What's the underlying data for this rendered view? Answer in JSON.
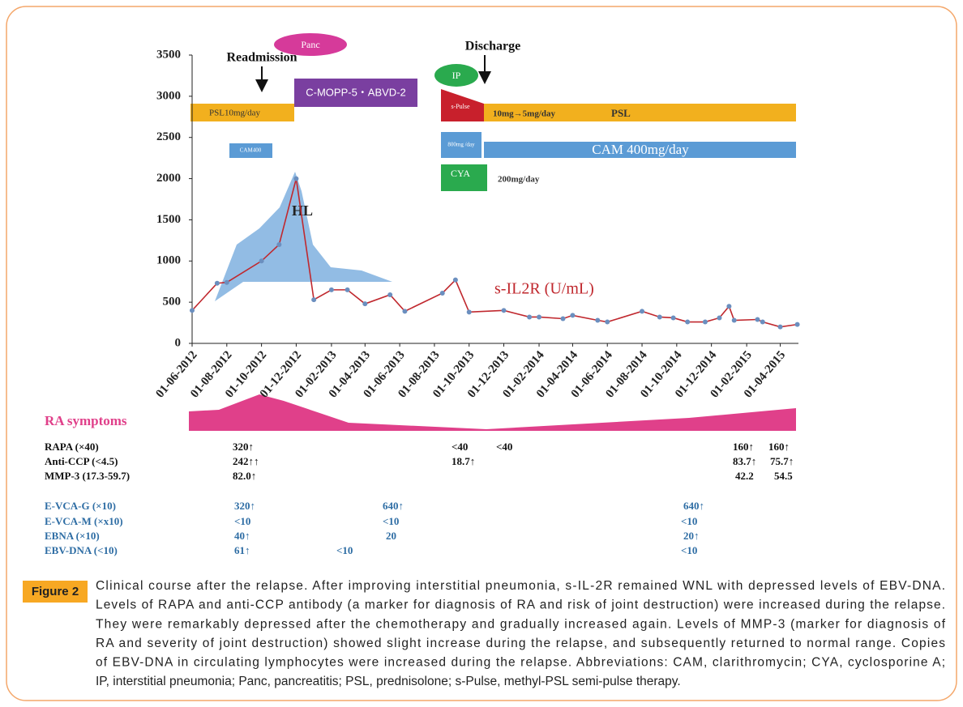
{
  "chart_data": {
    "type": "line",
    "x": [
      "01-06-2012",
      "15-07-2012",
      "01-08-2012",
      "01-10-2012",
      "01-11-2012",
      "01-12-2012",
      "01-01-2013",
      "01-02-2013",
      "01-03-2013",
      "01-04-2013",
      "15-05-2013",
      "10-06-2013",
      "15-08-2013",
      "07-09-2013",
      "01-10-2013",
      "01-12-2013",
      "15-01-2014",
      "01-02-2014",
      "15-03-2014",
      "01-04-2014",
      "15-05-2014",
      "01-06-2014",
      "01-08-2014",
      "01-09-2014",
      "25-09-2014",
      "20-10-2014",
      "20-11-2014",
      "15-12-2014",
      "01-01-2015",
      "10-01-2015",
      "20-02-2015",
      "01-03-2015",
      "01-04-2015",
      "01-05-2015"
    ],
    "series": [
      {
        "name": "s-IL2R (U/mL)",
        "color": "#c0282e",
        "values": [
          400,
          730,
          740,
          1000,
          1200,
          2000,
          530,
          650,
          650,
          480,
          590,
          390,
          610,
          770,
          380,
          400,
          320,
          320,
          300,
          340,
          280,
          260,
          390,
          320,
          310,
          260,
          260,
          310,
          450,
          280,
          290,
          260,
          200,
          230
        ]
      }
    ],
    "xlim": [
      "01-06-2012",
      "03-05-2015"
    ],
    "xticks": [
      "01-06-2012",
      "01-08-2012",
      "01-10-2012",
      "01-12-2012",
      "01-02-2013",
      "01-04-2013",
      "01-06-2013",
      "01-08-2013",
      "01-10-2013",
      "01-12-2013",
      "01-02-2014",
      "01-04-2014",
      "01-06-2014",
      "01-08-2014",
      "01-10-2014",
      "01-12-2014",
      "01-02-2015",
      "01-04-2015"
    ],
    "ylim": [
      0,
      3500
    ],
    "yticks": [
      0,
      500,
      1000,
      1500,
      2000,
      2500,
      3000,
      3500
    ],
    "marker_color": "#6b8fbf",
    "annotations": {
      "readmission": "Readmission",
      "discharge": "Discharge",
      "panc": "Panc",
      "chemo": "C-MOPP-5・ABVD-2",
      "psl_before": "PSL10mg/day",
      "cam_before": "CAM400",
      "hl": "HL",
      "ip": "IP",
      "spulse": "s-Pulse",
      "psl_dose": "10mg→5mg/day",
      "psl": "PSL",
      "cam_pulse": "800mg /day",
      "cam": "CAM 400mg/day",
      "cya": "CYA",
      "cya_dose": "200mg/day",
      "ra_symptoms": "RA symptoms"
    }
  },
  "lab_table": {
    "rows": [
      {
        "label": "RAPA (×40)",
        "values": [
          "320↑",
          "<40",
          "<40",
          "160↑",
          "160↑"
        ]
      },
      {
        "label": "Anti-CCP (<4.5)",
        "values": [
          "242↑↑",
          "18.7↑",
          "83.7↑",
          "75.7↑"
        ]
      },
      {
        "label": "MMP-3 (17.3-59.7)",
        "values": [
          "82.0↑",
          "42.2",
          "54.5"
        ]
      },
      {
        "label": "E-VCA-G (×10)",
        "values": [
          "320↑",
          "640↑",
          "640↑"
        ]
      },
      {
        "label": "E-VCA-M (×x10)",
        "values": [
          "<10",
          "<10",
          "<10"
        ]
      },
      {
        "label": "EBNA (×10)",
        "values": [
          "40↑",
          "20",
          "20↑"
        ]
      },
      {
        "label": "EBV-DNA (<10)",
        "values": [
          "61↑",
          "<10",
          "<10"
        ]
      }
    ]
  },
  "figure": {
    "label": "Figure 2",
    "caption_lines": [
      "Clinical course after the relapse.  After improving interstitial pneumonia, s-IL-2R remained WNL with depressed levels of EBV-DNA.",
      "Levels of RAPA and anti-CCP antibody (a marker for diagnosis of RA and risk of joint destruction) were increased during the relapse.",
      "They were remarkably depressed after the chemotherapy and gradually increased again.  Levels of MMP-3 (marker for diagnosis of",
      "RA and severity of joint destruction) showed slight increase during the relapse, and subsequently returned to normal range. Copies",
      "of EBV-DNA in circulating lymphocytes were increased during the relapse. Abbreviations: CAM, clarithromycin; CYA, cyclosporine A;",
      "IP, interstitial pneumonia; Panc, pancreatitis; PSL, prednisolone; s-Pulse, methyl-PSL semi-pulse therapy."
    ]
  }
}
